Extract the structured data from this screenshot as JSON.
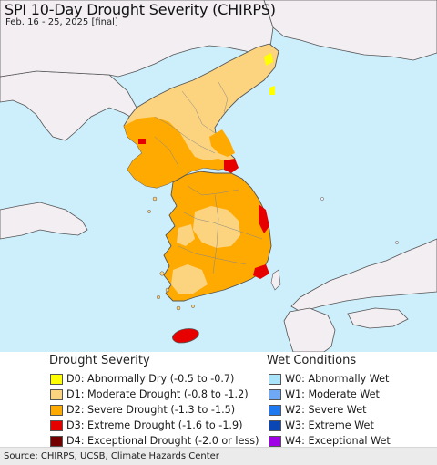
{
  "map": {
    "title": "SPI 10-Day Drought Severity (CHIRPS)",
    "subtitle": "Feb. 16 - 25, 2025 [final]",
    "colors": {
      "ocean": "#cdeefb",
      "land": "#f2eef2",
      "border": "#555555",
      "region": "#888888"
    }
  },
  "legend_drought": {
    "heading": "Drought Severity",
    "items": [
      {
        "label": "D0: Abnormally Dry (-0.5 to -0.7)",
        "color": "#ffff00"
      },
      {
        "label": "D1: Moderate Drought (-0.8 to -1.2)",
        "color": "#fcd37f"
      },
      {
        "label": "D2: Severe Drought (-1.3 to -1.5)",
        "color": "#ffaa00"
      },
      {
        "label": "D3: Extreme Drought (-1.6 to -1.9)",
        "color": "#e60000"
      },
      {
        "label": "D4: Exceptional Drought (-2.0 or less)",
        "color": "#730000"
      }
    ]
  },
  "legend_wet": {
    "heading": "Wet Conditions",
    "items": [
      {
        "label": "W0: Abnormally Wet",
        "color": "#aae4fa"
      },
      {
        "label": "W1: Moderate Wet",
        "color": "#6fa8f5"
      },
      {
        "label": "W2: Severe Wet",
        "color": "#1e78f0"
      },
      {
        "label": "W3: Extreme Wet",
        "color": "#0a46b4"
      },
      {
        "label": "W4: Exceptional Wet",
        "color": "#a000e6"
      }
    ]
  },
  "footer": {
    "source": "Source: CHIRPS, UCSB, Climate Hazards Center"
  }
}
